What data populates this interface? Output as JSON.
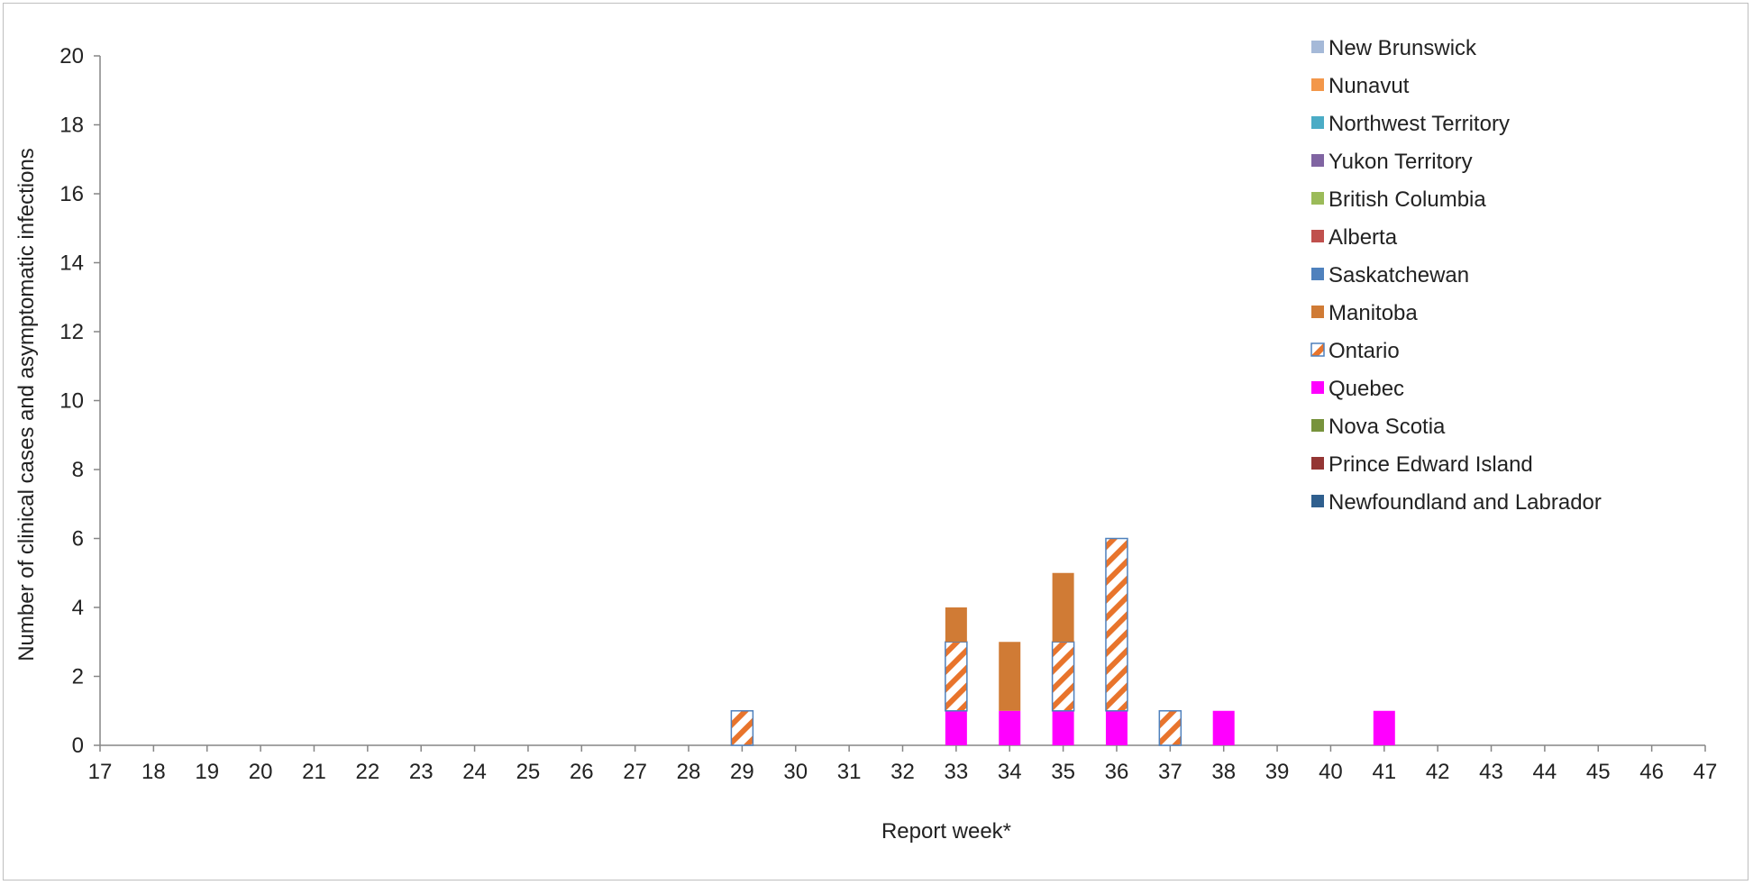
{
  "chart_data": {
    "type": "bar",
    "stacked": true,
    "title": "",
    "xlabel": "Report week*",
    "ylabel": "Number of clinical cases and asymptomatic infections",
    "ylim": [
      0,
      20
    ],
    "y_ticks": [
      0,
      2,
      4,
      6,
      8,
      10,
      12,
      14,
      16,
      18,
      20
    ],
    "categories": [
      "17",
      "18",
      "19",
      "20",
      "21",
      "22",
      "23",
      "24",
      "25",
      "26",
      "27",
      "28",
      "29",
      "30",
      "31",
      "32",
      "33",
      "34",
      "35",
      "36",
      "37",
      "38",
      "39",
      "40",
      "41",
      "42",
      "43",
      "44",
      "45",
      "46",
      "47"
    ],
    "grid": false,
    "legend_position": "top-right",
    "series": [
      {
        "name": "New Brunswick",
        "color": "#a5b9d8",
        "values": [
          0,
          0,
          0,
          0,
          0,
          0,
          0,
          0,
          0,
          0,
          0,
          0,
          0,
          0,
          0,
          0,
          0,
          0,
          0,
          0,
          0,
          0,
          0,
          0,
          0,
          0,
          0,
          0,
          0,
          0,
          0
        ]
      },
      {
        "name": "Nunavut",
        "color": "#f3974a",
        "values": [
          0,
          0,
          0,
          0,
          0,
          0,
          0,
          0,
          0,
          0,
          0,
          0,
          0,
          0,
          0,
          0,
          0,
          0,
          0,
          0,
          0,
          0,
          0,
          0,
          0,
          0,
          0,
          0,
          0,
          0,
          0
        ]
      },
      {
        "name": "Northwest Territory",
        "color": "#4bacc6",
        "values": [
          0,
          0,
          0,
          0,
          0,
          0,
          0,
          0,
          0,
          0,
          0,
          0,
          0,
          0,
          0,
          0,
          0,
          0,
          0,
          0,
          0,
          0,
          0,
          0,
          0,
          0,
          0,
          0,
          0,
          0,
          0
        ]
      },
      {
        "name": "Yukon Territory",
        "color": "#8064a2",
        "values": [
          0,
          0,
          0,
          0,
          0,
          0,
          0,
          0,
          0,
          0,
          0,
          0,
          0,
          0,
          0,
          0,
          0,
          0,
          0,
          0,
          0,
          0,
          0,
          0,
          0,
          0,
          0,
          0,
          0,
          0,
          0
        ]
      },
      {
        "name": "British Columbia",
        "color": "#9bbb59",
        "values": [
          0,
          0,
          0,
          0,
          0,
          0,
          0,
          0,
          0,
          0,
          0,
          0,
          0,
          0,
          0,
          0,
          0,
          0,
          0,
          0,
          0,
          0,
          0,
          0,
          0,
          0,
          0,
          0,
          0,
          0,
          0
        ]
      },
      {
        "name": "Alberta",
        "color": "#c0504d",
        "values": [
          0,
          0,
          0,
          0,
          0,
          0,
          0,
          0,
          0,
          0,
          0,
          0,
          0,
          0,
          0,
          0,
          0,
          0,
          0,
          0,
          0,
          0,
          0,
          0,
          0,
          0,
          0,
          0,
          0,
          0,
          0
        ]
      },
      {
        "name": "Saskatchewan",
        "color": "#4f81bd",
        "values": [
          0,
          0,
          0,
          0,
          0,
          0,
          0,
          0,
          0,
          0,
          0,
          0,
          0,
          0,
          0,
          0,
          0,
          0,
          0,
          0,
          0,
          0,
          0,
          0,
          0,
          0,
          0,
          0,
          0,
          0,
          0
        ]
      },
      {
        "name": "Manitoba",
        "color": "#d07b35",
        "values": [
          0,
          0,
          0,
          0,
          0,
          0,
          0,
          0,
          0,
          0,
          0,
          0,
          0,
          0,
          0,
          0,
          1,
          2,
          2,
          0,
          0,
          0,
          0,
          0,
          0,
          0,
          0,
          0,
          0,
          0,
          0
        ]
      },
      {
        "name": "Ontario",
        "color": "#e8742c",
        "pattern": "hatched",
        "outline": "#4f81bd",
        "values": [
          0,
          0,
          0,
          0,
          0,
          0,
          0,
          0,
          0,
          0,
          0,
          0,
          1,
          0,
          0,
          0,
          2,
          0,
          2,
          5,
          1,
          0,
          0,
          0,
          0,
          0,
          0,
          0,
          0,
          0,
          0
        ]
      },
      {
        "name": "Quebec",
        "color": "#ff00ff",
        "values": [
          0,
          0,
          0,
          0,
          0,
          0,
          0,
          0,
          0,
          0,
          0,
          0,
          0,
          0,
          0,
          0,
          1,
          1,
          1,
          1,
          0,
          1,
          0,
          0,
          1,
          0,
          0,
          0,
          0,
          0,
          0
        ]
      },
      {
        "name": "Nova Scotia",
        "color": "#77933c",
        "values": [
          0,
          0,
          0,
          0,
          0,
          0,
          0,
          0,
          0,
          0,
          0,
          0,
          0,
          0,
          0,
          0,
          0,
          0,
          0,
          0,
          0,
          0,
          0,
          0,
          0,
          0,
          0,
          0,
          0,
          0,
          0
        ]
      },
      {
        "name": "Prince Edward Island",
        "color": "#943634",
        "values": [
          0,
          0,
          0,
          0,
          0,
          0,
          0,
          0,
          0,
          0,
          0,
          0,
          0,
          0,
          0,
          0,
          0,
          0,
          0,
          0,
          0,
          0,
          0,
          0,
          0,
          0,
          0,
          0,
          0,
          0,
          0
        ]
      },
      {
        "name": "Newfoundland and Labrador",
        "color": "#2f5f8e",
        "values": [
          0,
          0,
          0,
          0,
          0,
          0,
          0,
          0,
          0,
          0,
          0,
          0,
          0,
          0,
          0,
          0,
          0,
          0,
          0,
          0,
          0,
          0,
          0,
          0,
          0,
          0,
          0,
          0,
          0,
          0,
          0
        ]
      }
    ],
    "stack_order_bottom_to_top": [
      "Quebec",
      "Ontario",
      "Manitoba"
    ]
  }
}
